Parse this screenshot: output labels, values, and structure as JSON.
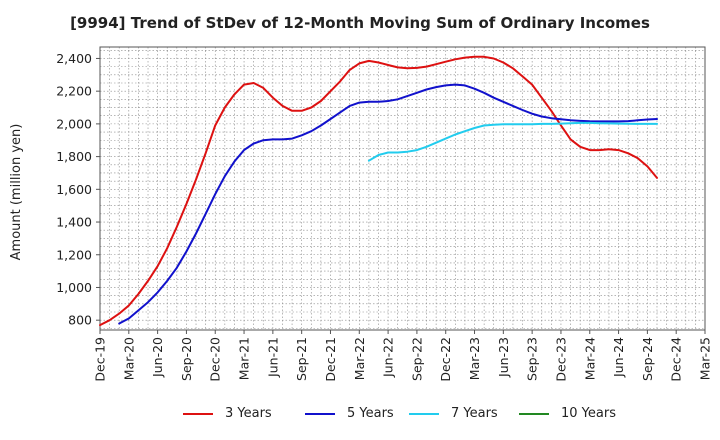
{
  "chart_data": {
    "type": "line",
    "title": "[9994]  Trend of StDev of 12-Month Moving Sum of Ordinary Incomes",
    "xlabel": "",
    "ylabel": "Amount (million yen)",
    "ylim": [
      740,
      2470
    ],
    "yticks": [
      800,
      1000,
      1200,
      1400,
      1600,
      1800,
      2000,
      2200,
      2400
    ],
    "ytick_labels": [
      "800",
      "1,000",
      "1,200",
      "1,400",
      "1,600",
      "1,800",
      "2,000",
      "2,200",
      "2,400"
    ],
    "xlim": [
      0,
      63
    ],
    "xticks": [
      0,
      3,
      6,
      9,
      12,
      15,
      18,
      21,
      24,
      27,
      30,
      33,
      36,
      39,
      42,
      45,
      48,
      51,
      54,
      57,
      60,
      63
    ],
    "xtick_labels": [
      "Dec-19",
      "Mar-20",
      "Jun-20",
      "Sep-20",
      "Dec-20",
      "Mar-21",
      "Jun-21",
      "Sep-21",
      "Dec-21",
      "Mar-22",
      "Jun-22",
      "Sep-22",
      "Dec-22",
      "Mar-23",
      "Jun-23",
      "Sep-23",
      "Dec-23",
      "Mar-24",
      "Jun-24",
      "Sep-24",
      "Dec-24",
      "Mar-25"
    ],
    "grid": true,
    "legend_position": "bottom",
    "series": [
      {
        "name": "3 Years",
        "color": "#dd1111",
        "start": 0,
        "values": [
          770,
          800,
          840,
          890,
          960,
          1040,
          1130,
          1240,
          1370,
          1510,
          1660,
          1820,
          1990,
          2100,
          2180,
          2240,
          2250,
          2220,
          2160,
          2110,
          2080,
          2080,
          2100,
          2140,
          2200,
          2260,
          2330,
          2370,
          2385,
          2375,
          2360,
          2345,
          2340,
          2342,
          2350,
          2365,
          2380,
          2395,
          2405,
          2410,
          2410,
          2400,
          2375,
          2340,
          2290,
          2240,
          2160,
          2080,
          1990,
          1905,
          1860,
          1840,
          1840,
          1845,
          1840,
          1820,
          1790,
          1740,
          1670
        ]
      },
      {
        "name": "5 Years",
        "color": "#1111cc",
        "start": 2,
        "values": [
          780,
          810,
          860,
          910,
          970,
          1040,
          1120,
          1220,
          1330,
          1450,
          1570,
          1680,
          1770,
          1840,
          1880,
          1900,
          1905,
          1905,
          1910,
          1930,
          1955,
          1990,
          2030,
          2070,
          2110,
          2130,
          2135,
          2135,
          2140,
          2150,
          2170,
          2190,
          2210,
          2225,
          2235,
          2240,
          2235,
          2215,
          2190,
          2160,
          2135,
          2110,
          2085,
          2062,
          2045,
          2035,
          2028,
          2022,
          2018,
          2016,
          2015,
          2015,
          2015,
          2017,
          2022,
          2027,
          2030
        ]
      },
      {
        "name": "7 Years",
        "color": "#22ccee",
        "start": 28,
        "values": [
          1775,
          1810,
          1825,
          1825,
          1830,
          1840,
          1860,
          1885,
          1910,
          1935,
          1955,
          1975,
          1990,
          1995,
          1998,
          1998,
          1998,
          1998,
          2000,
          2000,
          2002,
          2004,
          2006,
          2006,
          2004,
          2003,
          2002,
          2001,
          2000,
          2000,
          2000
        ]
      },
      {
        "name": "10 Years",
        "color": "#228822",
        "start": 0,
        "values": []
      }
    ]
  }
}
